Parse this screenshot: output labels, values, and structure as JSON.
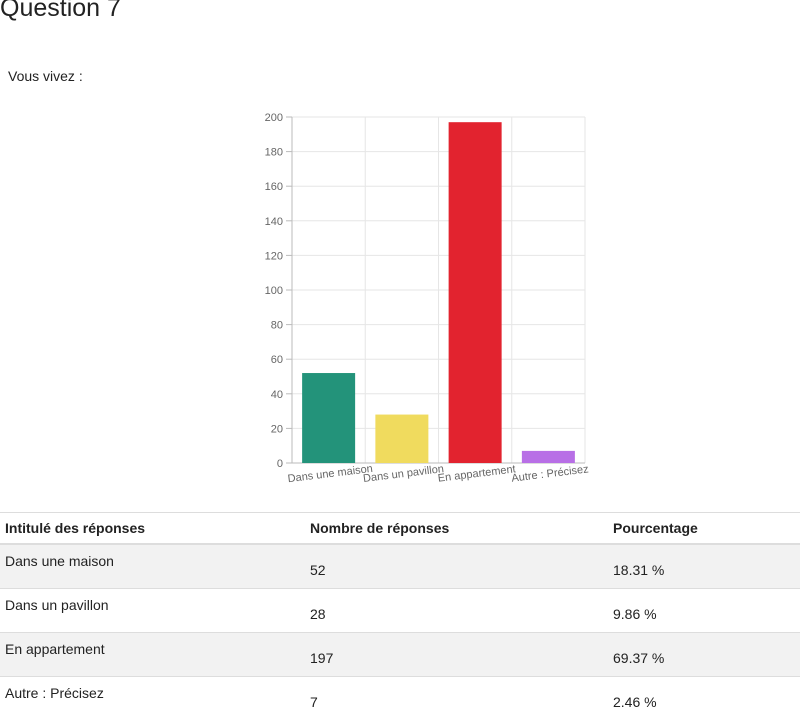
{
  "page": {
    "title": "Question 7",
    "prompt": "Vous vivez :"
  },
  "colors": {
    "bars": [
      "#23937a",
      "#f0db5e",
      "#e2232f",
      "#b86fe6"
    ],
    "grid": "#e6e6e6",
    "axis": "#bbbbbb"
  },
  "chart_data": {
    "type": "bar",
    "title": "",
    "xlabel": "",
    "ylabel": "",
    "categories": [
      "Dans une maison",
      "Dans un pavillon",
      "En appartement",
      "Autre : Précisez"
    ],
    "values": [
      52,
      28,
      197,
      7
    ],
    "ylim": [
      0,
      200
    ],
    "yticks": [
      0,
      20,
      40,
      60,
      80,
      100,
      120,
      140,
      160,
      180,
      200
    ],
    "grid": true
  },
  "table": {
    "headers": [
      "Intitulé des réponses",
      "Nombre de réponses",
      "Pourcentage"
    ],
    "rows": [
      {
        "label": "Dans une maison",
        "count": "52",
        "percent": "18.31 %"
      },
      {
        "label": "Dans un pavillon",
        "count": "28",
        "percent": "9.86 %"
      },
      {
        "label": "En appartement",
        "count": "197",
        "percent": "69.37 %"
      },
      {
        "label": "Autre : Précisez",
        "count": "7",
        "percent": "2.46 %"
      }
    ]
  }
}
